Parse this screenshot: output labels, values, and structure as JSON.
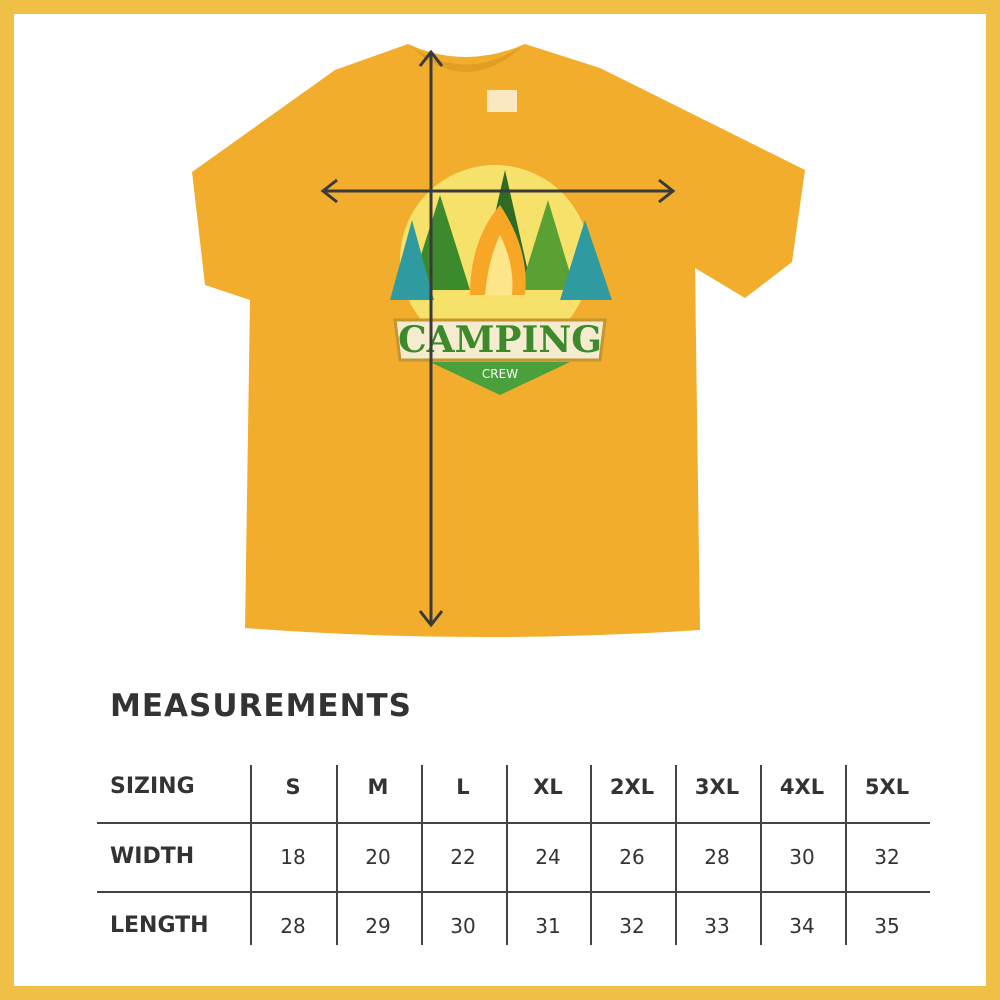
{
  "colors": {
    "border": "#f0bf45",
    "shirt": "#f2ad2c",
    "text": "#333333"
  },
  "product": {
    "design_text": "CAMPING",
    "design_subtext": "CREW",
    "image": "t-shirt-with-campfire-logo"
  },
  "measurements": {
    "title": "MEASUREMENTS",
    "header_label": "SIZING",
    "sizes": [
      "S",
      "M",
      "L",
      "XL",
      "2XL",
      "3XL",
      "4XL",
      "5XL"
    ],
    "rows": [
      {
        "label": "WIDTH",
        "values": [
          "18",
          "20",
          "22",
          "24",
          "26",
          "28",
          "30",
          "32"
        ]
      },
      {
        "label": "LENGTH",
        "values": [
          "28",
          "29",
          "30",
          "31",
          "32",
          "33",
          "34",
          "35"
        ]
      }
    ]
  }
}
